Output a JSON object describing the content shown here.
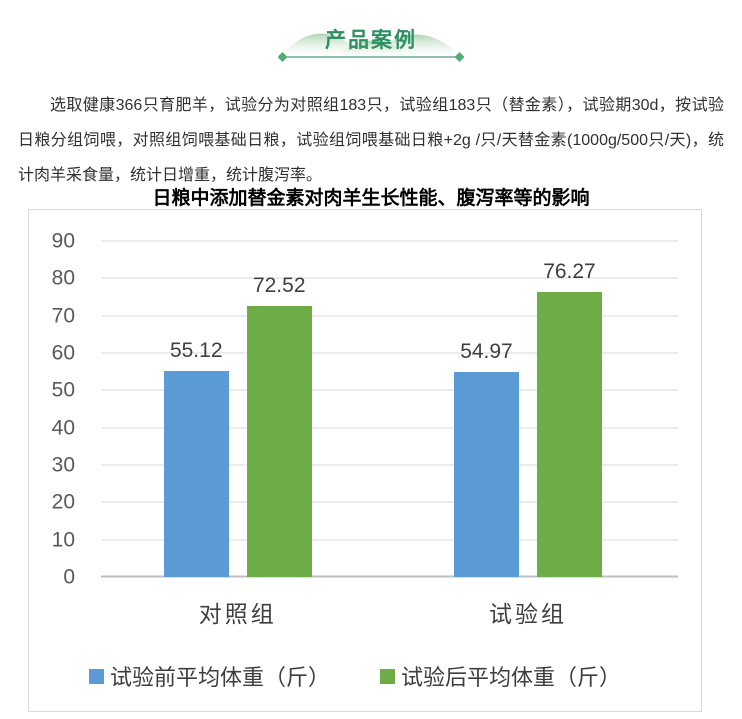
{
  "header": {
    "badge_label": "产品案例"
  },
  "intro": {
    "text": "选取健康366只育肥羊，试验分为对照组183只，试验组183只（替金素），试验期30d，按试验日粮分组饲喂，对照组饲喂基础日粮，试验组饲喂基础日粮+2g /只/天替金素(1000g/500只/天)，统计肉羊采食量，统计日增重，统计腹泻率。"
  },
  "chart_data": {
    "type": "bar",
    "title": "日粮中添加替金素对肉羊生长性能、腹泻率等的影响",
    "categories": [
      "对照组",
      "试验组"
    ],
    "series": [
      {
        "name": "试验前平均体重（斤）",
        "color": "#5B9BD5",
        "values": [
          55.12,
          54.97
        ]
      },
      {
        "name": "试验后平均体重（斤）",
        "color": "#6EAC47",
        "values": [
          72.52,
          76.27
        ]
      }
    ],
    "xlabel": "",
    "ylabel": "",
    "ylim": [
      0,
      90
    ],
    "ytick_step": 10,
    "grid": true,
    "legend_position": "bottom",
    "value_label_decimals": 2,
    "group_centers_pct": [
      23.7,
      74.0
    ]
  },
  "colors": {
    "badge_text": "#2E8F63",
    "badge_line": "#6BAB97",
    "badge_diamond": "#52AD74",
    "bar_blue": "#5B9BD5",
    "bar_green": "#6EAC47",
    "gridline": "#D9D9D9",
    "axis_line": "#BFBFBF",
    "tick_text": "#595959",
    "chart_border": "#D9D9D9"
  }
}
